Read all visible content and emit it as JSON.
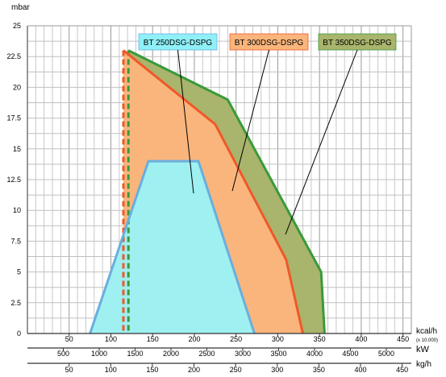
{
  "chart_data": {
    "type": "area",
    "ylabel": "mbar",
    "ylim": [
      0,
      25
    ],
    "y_ticks": [
      "0",
      "2.5",
      "5",
      "7.5",
      "10",
      "12.5",
      "15",
      "17.5",
      "20",
      "22.5",
      "25"
    ],
    "axes": [
      {
        "key": "kcal",
        "label": "kcal/h",
        "sublabel": "(x 10.000)",
        "range": [
          0,
          460
        ],
        "ticks": [
          50,
          100,
          150,
          200,
          250,
          300,
          350,
          400,
          450
        ],
        "tick_labels": [
          "50",
          "100",
          "150",
          "200",
          "250",
          "300",
          "350",
          "400",
          "450"
        ]
      },
      {
        "key": "kw",
        "label": "kW",
        "range": [
          0,
          5349
        ],
        "ticks": [
          500,
          1000,
          1500,
          2000,
          2500,
          3000,
          3500,
          4000,
          4500,
          5000
        ],
        "tick_labels": [
          "500",
          "1000",
          "1500",
          "2000",
          "2500",
          "3000",
          "3500",
          "4000",
          "4500",
          "5000"
        ]
      },
      {
        "key": "kg",
        "label": "kg/h",
        "range": [
          0,
          461
        ],
        "ticks": [
          50,
          100,
          150,
          200,
          250,
          300,
          350,
          400,
          450
        ],
        "tick_labels": [
          "50",
          "100",
          "150",
          "200",
          "250",
          "300",
          "350",
          "400",
          "450"
        ]
      }
    ],
    "grid": true,
    "series": [
      {
        "name": "BT 350DSG-DSPG",
        "color": "#3a9a3a",
        "fill": "#a9b46c",
        "x": [
          121,
          121,
          240,
          352,
          356,
          356
        ],
        "y": [
          0,
          23,
          19,
          5,
          0,
          0
        ],
        "start_line": {
          "x": 121,
          "dashed": true
        }
      },
      {
        "name": "BT 300DSG-DSPG",
        "color": "#f0582a",
        "fill": "#f9b57c",
        "x": [
          115,
          115,
          225,
          310,
          330,
          330
        ],
        "y": [
          0,
          23,
          17,
          6,
          0,
          0
        ],
        "start_line": {
          "x": 115,
          "dashed": true
        }
      },
      {
        "name": "BT 250DSG-DSPG",
        "color": "#6aaede",
        "fill": "#9ff0f0",
        "x": [
          75,
          145,
          205,
          272
        ],
        "y": [
          0,
          14,
          14,
          0
        ]
      }
    ],
    "legend": [
      {
        "label": "BT 250DSG-DSPG",
        "fill": "#8ff0f8",
        "border": "#6aaede"
      },
      {
        "label": "BT 300DSG-DSPG",
        "fill": "#f9b57c",
        "border": "#f0582a"
      },
      {
        "label": "BT 350DSG-DSPG",
        "fill": "#a9b46c",
        "border": "#3a9a3a"
      }
    ]
  }
}
